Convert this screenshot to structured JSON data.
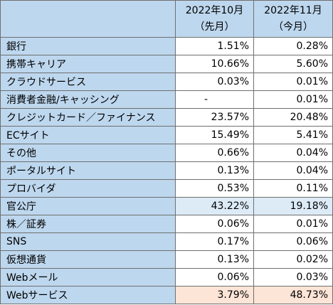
{
  "table": {
    "columns": [
      {
        "line1": "2022年10月",
        "line2": "（先月）"
      },
      {
        "line1": "2022年11月",
        "line2": "（今月）"
      }
    ],
    "rows": [
      {
        "label": "銀行",
        "oct": "1.51%",
        "nov": "0.28%"
      },
      {
        "label": "携帯キャリア",
        "oct": "10.66%",
        "nov": "5.60%"
      },
      {
        "label": "クラウドサービス",
        "oct": "0.03%",
        "nov": "0.01%"
      },
      {
        "label": "消費者金融/キャッシング",
        "oct": "-",
        "nov": "0.01%"
      },
      {
        "label": "クレジットカード／ファイナンス",
        "oct": "23.57%",
        "nov": "20.48%"
      },
      {
        "label": "ECサイト",
        "oct": "15.49%",
        "nov": "5.41%"
      },
      {
        "label": "その他",
        "oct": "0.66%",
        "nov": "0.04%"
      },
      {
        "label": "ポータルサイト",
        "oct": "0.13%",
        "nov": "0.04%"
      },
      {
        "label": "プロバイダ",
        "oct": "0.53%",
        "nov": "0.11%"
      },
      {
        "label": "官公庁",
        "oct": "43.22%",
        "nov": "19.18%"
      },
      {
        "label": "株／証券",
        "oct": "0.06%",
        "nov": "0.01%"
      },
      {
        "label": "SNS",
        "oct": "0.17%",
        "nov": "0.06%"
      },
      {
        "label": "仮想通貨",
        "oct": "0.13%",
        "nov": "0.02%"
      },
      {
        "label": "Webメール",
        "oct": "0.06%",
        "nov": "0.03%"
      },
      {
        "label": "Webサービス",
        "oct": "3.79%",
        "nov": "48.73%"
      }
    ]
  },
  "colors": {
    "header_bg": "#bdd7ee",
    "highlight_blue": "#ddebf7",
    "highlight_orange": "#fce4d6",
    "border": "#6f6f6f"
  }
}
